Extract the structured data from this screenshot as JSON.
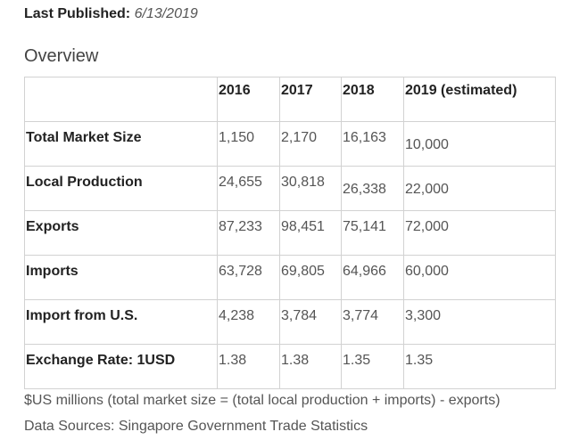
{
  "published": {
    "label": "Last Published:",
    "date": "6/13/2019"
  },
  "section_title": "Overview",
  "table": {
    "headers": [
      "",
      "2016",
      "2017",
      "2018",
      "2019 (estimated)"
    ],
    "rows": [
      {
        "label": "Total Market Size",
        "values": [
          "1,150",
          "2,170",
          "16,163",
          "10,000"
        ]
      },
      {
        "label": "Local Production",
        "values": [
          "24,655",
          "30,818",
          "26,338",
          "22,000"
        ]
      },
      {
        "label": "Exports",
        "values": [
          "87,233",
          "98,451",
          "75,141",
          "72,000"
        ]
      },
      {
        "label": "Imports",
        "values": [
          "63,728",
          "69,805",
          "64,966",
          "60,000"
        ]
      },
      {
        "label": "Import from U.S.",
        "values": [
          "4,238",
          "3,784",
          "3,774",
          "3,300"
        ]
      },
      {
        "label": "Exchange Rate: 1USD",
        "values": [
          "1.38",
          "1.38",
          "1.35",
          "1.35"
        ]
      }
    ]
  },
  "footnote": "$US millions (total market size = (total local production + imports) - exports)",
  "source": "Data Sources: Singapore Government Trade Statistics"
}
